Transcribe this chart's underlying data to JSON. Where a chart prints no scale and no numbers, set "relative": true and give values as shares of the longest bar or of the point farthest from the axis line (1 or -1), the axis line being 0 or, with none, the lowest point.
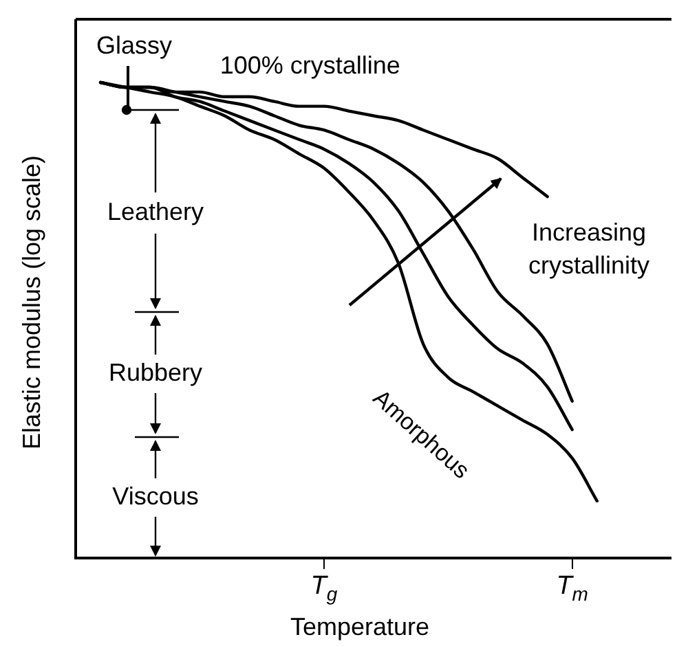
{
  "chart_data": {
    "type": "line",
    "relative": true,
    "xlabel": "Temperature",
    "ylabel": "Elastic modulus (log scale)",
    "categories": [
      null,
      null,
      null,
      null,
      null,
      null,
      null,
      null,
      null,
      null,
      "T$_{g}$",
      null,
      null,
      null,
      null,
      null,
      null,
      null,
      null,
      null,
      "T$_{m}$",
      null,
      null,
      null,
      null
    ],
    "series": [
      {
        "name": "100% crystalline",
        "color": "#000000",
        "values": [
          null,
          1,
          0.99,
          0.99,
          0.98,
          0.98,
          0.97,
          0.97,
          0.96,
          0.95,
          0.95,
          0.94,
          0.93,
          0.92,
          0.9,
          0.88,
          0.86,
          0.84,
          0.8,
          0.76,
          null,
          null,
          null,
          null,
          null
        ]
      },
      {
        "color": "#000000",
        "values": [
          null,
          1,
          0.99,
          0.99,
          0.98,
          0.97,
          0.96,
          0.95,
          0.93,
          0.91,
          0.9,
          0.88,
          0.86,
          0.83,
          0.79,
          0.73,
          0.65,
          0.56,
          0.51,
          0.45,
          0.33,
          null,
          null,
          null,
          null
        ]
      },
      {
        "color": "#000000",
        "values": [
          null,
          1,
          0.99,
          0.99,
          0.97,
          0.96,
          0.94,
          0.92,
          0.9,
          0.88,
          0.86,
          0.83,
          0.79,
          0.73,
          0.64,
          0.55,
          0.49,
          0.44,
          0.41,
          0.36,
          0.27,
          null,
          null,
          null,
          null
        ]
      },
      {
        "name": "Amorphous",
        "color": "#000000",
        "values": [
          null,
          1,
          0.99,
          0.98,
          0.97,
          0.95,
          0.93,
          0.9,
          0.88,
          0.85,
          0.82,
          0.77,
          0.71,
          0.62,
          0.45,
          0.38,
          0.35,
          0.32,
          0.29,
          0.26,
          0.21,
          0.12,
          null,
          null,
          null
        ]
      }
    ],
    "annotations": [
      "Glassy",
      "Leathery",
      "Rubbery",
      "Viscous",
      "Increasing crystallinity"
    ],
    "grid": false,
    "legend": false,
    "marker": "none",
    "line_style": "solid"
  }
}
